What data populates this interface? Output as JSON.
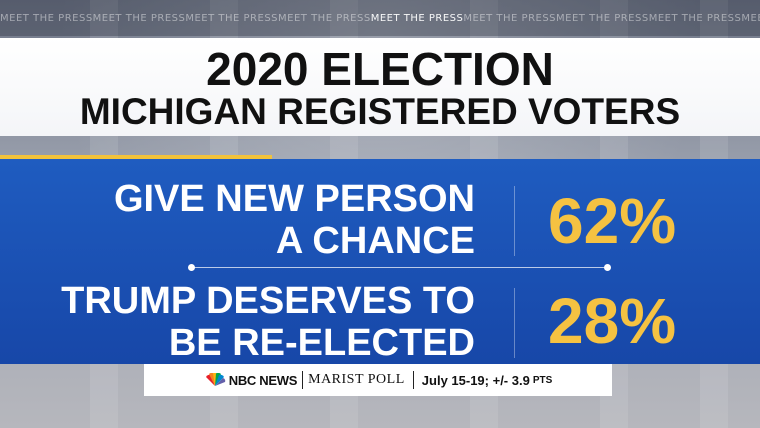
{
  "ticker": [
    "MEET THE PRESS",
    "MEET THE PRESS",
    "MEET THE PRESS",
    "MEET THE PRESS",
    "MEET THE PRESS",
    "MEET THE PRESS",
    "MEET THE PRESS",
    "MEET THE PRESS",
    "MEET THE PRESS"
  ],
  "title": "2020 ELECTION",
  "subtitle": "MICHIGAN REGISTERED VOTERS",
  "chart_data": {
    "type": "table",
    "title": "2020 ELECTION",
    "subtitle": "MICHIGAN REGISTERED VOTERS",
    "rows": [
      {
        "label_lines": [
          "GIVE NEW PERSON",
          "A CHANCE"
        ],
        "value": 62,
        "display": "62%"
      },
      {
        "label_lines": [
          "TRUMP DESERVES TO",
          "BE RE-ELECTED"
        ],
        "value": 28,
        "display": "28%"
      }
    ],
    "colors": {
      "panel": "#1f5cc0",
      "value": "#f5c242",
      "accent": "#f2c23a"
    }
  },
  "footer": {
    "brand": "NBC NEWS",
    "poll": "MARIST POLL",
    "dates": "July 15-19; +/- 3.9",
    "moe_unit": "PTS"
  }
}
